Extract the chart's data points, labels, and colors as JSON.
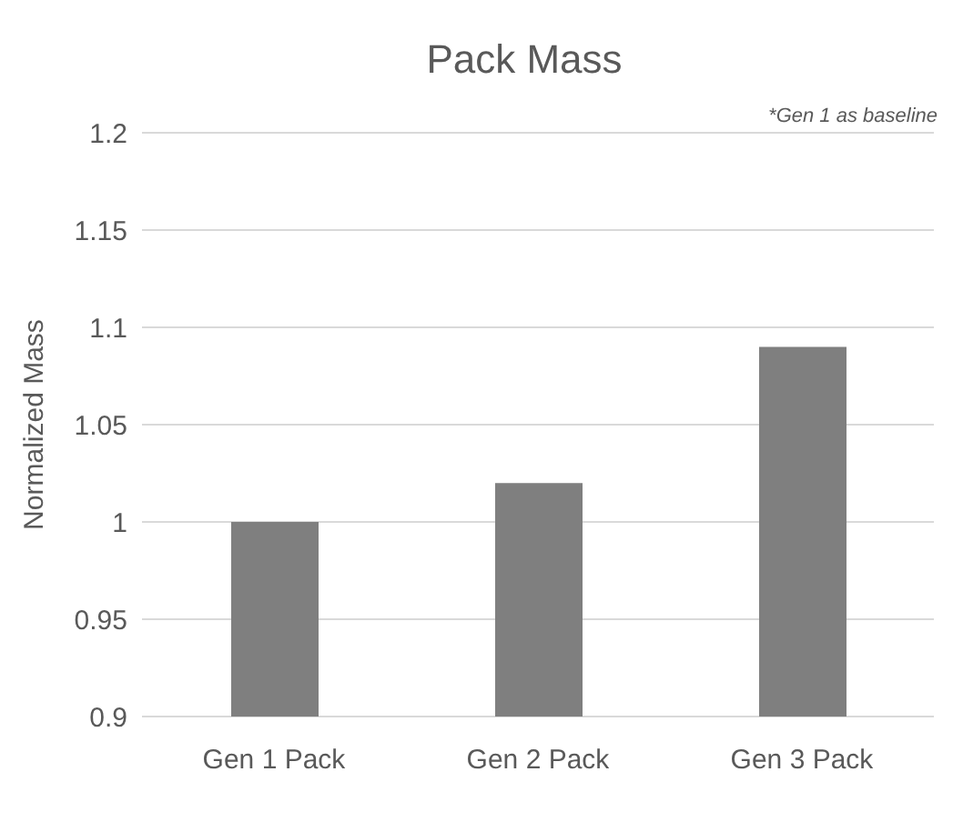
{
  "chart_data": {
    "type": "bar",
    "title": "Pack Mass",
    "ylabel": "Normalized Mass",
    "categories": [
      "Gen 1 Pack",
      "Gen 2 Pack",
      "Gen 3 Pack"
    ],
    "values": [
      1.0,
      1.02,
      1.09
    ],
    "color": "#7f7f7f",
    "ylim": [
      0.9,
      1.2
    ],
    "yticks": [
      0.9,
      0.95,
      1,
      1.05,
      1.1,
      1.15,
      1.2
    ],
    "grid": "y",
    "legend": false,
    "annotations": [
      "*Gen 1 as baseline"
    ]
  }
}
